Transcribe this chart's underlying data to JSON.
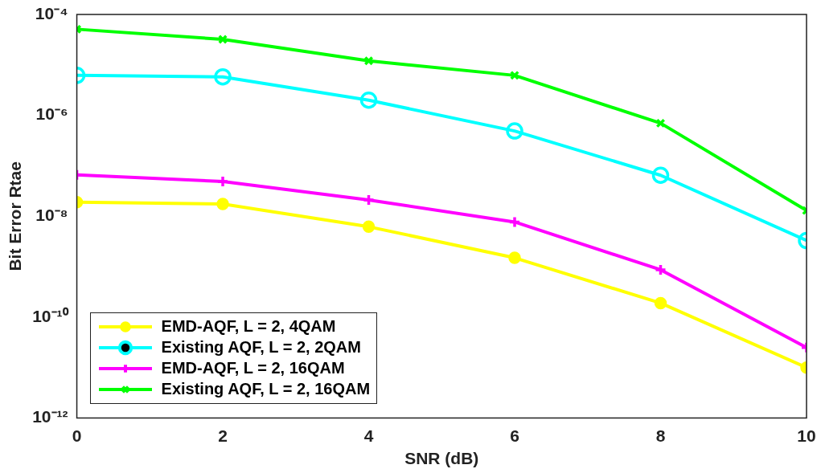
{
  "chart_data": {
    "type": "line",
    "xlabel": "SNR (dB)",
    "ylabel": "Bit Error Rtae",
    "log": "y",
    "grid": false,
    "legend": "bottom left",
    "x": [
      0,
      2,
      4,
      6,
      8,
      10
    ],
    "xlim": [
      0,
      10
    ],
    "xticks": [
      0,
      2,
      4,
      6,
      8,
      10
    ],
    "ylim": [
      1e-12,
      0.0001
    ],
    "yticks": [
      {
        "value": 1e-12,
        "label": "10⁻¹²"
      },
      {
        "value": 1e-10,
        "label": "10⁻¹⁰"
      },
      {
        "value": 1e-08,
        "label": "10⁻⁸"
      },
      {
        "value": 1e-06,
        "label": "10⁻⁶"
      },
      {
        "value": 0.0001,
        "label": "10⁻⁴"
      }
    ],
    "series": [
      {
        "name": "EMD-AQF, L = 2, 4QAM",
        "color": "#ffff00",
        "marker": "circle",
        "values": [
          1.9e-08,
          1.75e-08,
          6.2e-09,
          1.5e-09,
          1.9e-10,
          1e-11
        ]
      },
      {
        "name": "Existing AQF, L = 2, 2QAM",
        "color": "#00ffff",
        "marker": "circle",
        "values": [
          6.2e-06,
          5.8e-06,
          2e-06,
          4.9e-07,
          6.5e-08,
          3.3e-09
        ]
      },
      {
        "name": "EMD-AQF, L = 2, 16QAM",
        "color": "#ff00ff",
        "marker": "cross",
        "values": [
          6.6e-08,
          4.9e-08,
          2.1e-08,
          7.7e-09,
          8.7e-10,
          2.5e-11
        ]
      },
      {
        "name": "Existing AQF, L = 2, 16QAM",
        "color": "#00ff00",
        "marker": "cross",
        "values": [
          5.1e-05,
          3.2e-05,
          1.2e-05,
          6.2e-06,
          7e-07,
          1.3e-08
        ]
      }
    ]
  }
}
